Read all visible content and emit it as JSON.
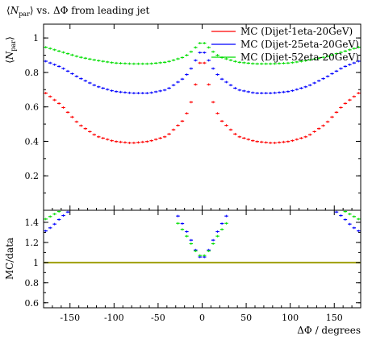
{
  "chart_data": [
    {
      "type": "line",
      "panel": "main",
      "title": "⟨N_par⟩ vs. ΔΦ from leading jet",
      "xlabel": "",
      "ylabel": "⟨N_par⟩",
      "xlim": [
        -180,
        180
      ],
      "ylim": [
        0.0,
        1.08
      ],
      "yticks": [
        0.2,
        0.4,
        0.6,
        0.8,
        1.0
      ],
      "ytick_labels": [
        "0.2",
        "0.4",
        "0.6",
        "0.8",
        "1"
      ],
      "legend_placement": "top-right",
      "grid": false,
      "series": [
        {
          "name": "MC (Dijet-1eta-20GeV)",
          "color": "#ff0000",
          "x": [
            -180,
            -160,
            -140,
            -120,
            -100,
            -80,
            -60,
            -40,
            -20,
            -10,
            -5,
            0,
            5,
            10,
            20,
            40,
            60,
            80,
            100,
            120,
            140,
            160,
            180
          ],
          "y": [
            0.69,
            0.61,
            0.5,
            0.43,
            0.4,
            0.39,
            0.4,
            0.43,
            0.53,
            0.66,
            0.8,
            0.91,
            0.8,
            0.66,
            0.53,
            0.43,
            0.4,
            0.39,
            0.4,
            0.43,
            0.5,
            0.61,
            0.69
          ]
        },
        {
          "name": "MC (Dijet-25eta-20GeV)",
          "color": "#0000ff",
          "x": [
            -180,
            -160,
            -140,
            -120,
            -100,
            -80,
            -60,
            -40,
            -20,
            -10,
            -5,
            0,
            5,
            10,
            20,
            40,
            60,
            80,
            100,
            120,
            140,
            160,
            180
          ],
          "y": [
            0.87,
            0.83,
            0.77,
            0.72,
            0.69,
            0.68,
            0.68,
            0.7,
            0.77,
            0.84,
            0.9,
            0.93,
            0.9,
            0.84,
            0.77,
            0.7,
            0.68,
            0.68,
            0.69,
            0.72,
            0.77,
            0.83,
            0.87
          ]
        },
        {
          "name": "MC (Dijet-52eta-20GeV)",
          "color": "#00dd00",
          "x": [
            -180,
            -160,
            -140,
            -120,
            -100,
            -80,
            -60,
            -40,
            -20,
            -10,
            -5,
            0,
            5,
            10,
            20,
            40,
            60,
            80,
            100,
            120,
            140,
            160,
            180
          ],
          "y": [
            0.95,
            0.92,
            0.89,
            0.87,
            0.855,
            0.85,
            0.85,
            0.86,
            0.89,
            0.93,
            0.96,
            0.98,
            0.96,
            0.93,
            0.89,
            0.86,
            0.85,
            0.85,
            0.855,
            0.87,
            0.89,
            0.92,
            0.95
          ]
        }
      ]
    },
    {
      "type": "line",
      "panel": "ratio",
      "title": "",
      "xlabel": "ΔΦ / degrees",
      "ylabel": "MC/data",
      "xlim": [
        -180,
        180
      ],
      "ylim": [
        0.55,
        1.52
      ],
      "yticks": [
        0.6,
        0.8,
        1.0,
        1.2,
        1.4
      ],
      "ytick_labels": [
        "0.6",
        "0.8",
        "1",
        "1.2",
        "1.4"
      ],
      "xticks": [
        -150,
        -100,
        -50,
        0,
        50,
        100,
        150
      ],
      "xtick_labels": [
        "-150",
        "-100",
        "-50",
        "0",
        "50",
        "100",
        "150"
      ],
      "reference_line": {
        "y": 1.0,
        "color": "#a0a000"
      },
      "series": [
        {
          "name": "MC (Dijet-25eta-20GeV)",
          "color": "#0000ff",
          "x": [
            -180,
            -170,
            -160,
            -150,
            -140,
            -30,
            -20,
            -10,
            -5,
            0,
            5,
            10,
            20,
            30,
            140,
            150,
            160,
            170,
            180
          ],
          "y": [
            1.3,
            1.36,
            1.45,
            1.52,
            null,
            1.5,
            1.35,
            1.18,
            1.07,
            1.04,
            1.07,
            1.18,
            1.35,
            1.5,
            null,
            1.52,
            1.45,
            1.36,
            1.3
          ]
        },
        {
          "name": "MC (Dijet-52eta-20GeV)",
          "color": "#00dd00",
          "x": [
            -180,
            -170,
            -160,
            -150,
            -30,
            -20,
            -10,
            -5,
            0,
            5,
            10,
            20,
            30,
            150,
            160,
            170,
            180
          ],
          "y": [
            1.42,
            1.47,
            1.52,
            null,
            1.42,
            1.3,
            1.15,
            1.08,
            1.06,
            1.08,
            1.15,
            1.3,
            1.42,
            null,
            1.52,
            1.47,
            1.42
          ]
        }
      ]
    }
  ]
}
